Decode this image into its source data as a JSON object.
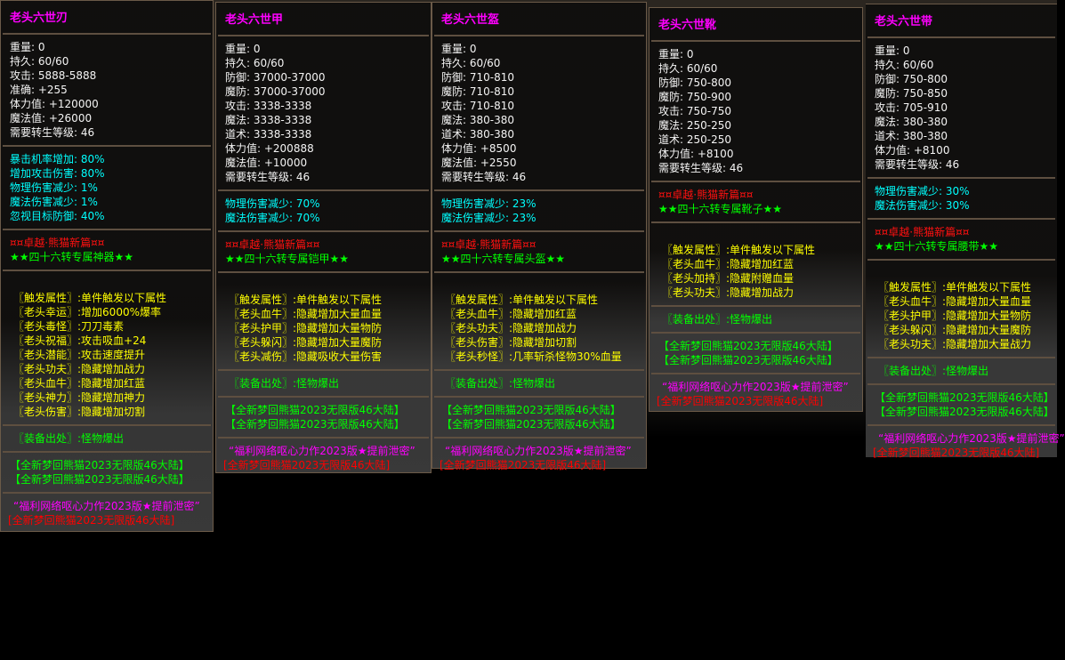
{
  "colors": {
    "title": "#ff00ff",
    "stat": "#ffffff",
    "bonus": "#00ffff",
    "series": "#ff0000",
    "exclusive": "#00ff00",
    "trigger": "#ffff00",
    "source": "#00ff00",
    "slogan": "#ff00ff",
    "footer": "#ff0000"
  },
  "panels": [
    {
      "title": "老头六世刃",
      "stats": [
        "重量: 0",
        "持久: 60/60",
        "攻击: 5888-5888",
        "准确: +255",
        "体力值: +120000",
        "魔法值: +26000",
        "需要转生等级: 46"
      ],
      "bonuses": [
        "暴击机率增加: 80%",
        "增加攻击伤害: 80%",
        "物理伤害减少: 1%",
        "魔法伤害减少: 1%",
        "忽视目标防御: 40%"
      ],
      "series": "¤¤卓越·熊猫新篇¤¤",
      "exclusive": "★★四十六转专属神器★★",
      "triggers": [
        "〖触发属性〗:单件触发以下属性",
        "〖老头幸运〗:增加6000%爆率",
        "〖老头毒怪〗:刀刀毒素",
        "〖老头祝福〗:攻击吸血+24",
        "〖老头潜能〗:攻击速度提升",
        "〖老头功夫〗:隐藏增加战力",
        "〖老头血牛〗:隐藏增加红蓝",
        "〖老头神力〗:隐藏增加神力",
        "〖老头伤害〗:隐藏增加切割"
      ],
      "source": "〖装备出处〗:怪物爆出",
      "promo": [
        "【全新梦回熊猫2023无限版46大陆】",
        "【全新梦回熊猫2023无限版46大陆】"
      ],
      "slogan": "“福利网络呕心力作2023版★提前泄密”",
      "footer": "[全新梦回熊猫2023无限版46大陆]"
    },
    {
      "title": "老头六世甲",
      "stats": [
        "重量: 0",
        "持久: 60/60",
        "防御: 37000-37000",
        "魔防: 37000-37000",
        "攻击: 3338-3338",
        "魔法: 3338-3338",
        "道术: 3338-3338",
        "体力值: +200888",
        "魔法值: +10000",
        "需要转生等级: 46"
      ],
      "bonuses": [
        "物理伤害减少: 70%",
        "魔法伤害减少: 70%"
      ],
      "series": "¤¤卓越·熊猫新篇¤¤",
      "exclusive": "★★四十六转专属铠甲★★",
      "triggers": [
        "〖触发属性〗:单件触发以下属性",
        "〖老头血牛〗:隐藏增加大量血量",
        "〖老头护甲〗:隐藏增加大量物防",
        "〖老头躲闪〗:隐藏增加大量魔防",
        "〖老头减伤〗:隐藏吸收大量伤害"
      ],
      "source": "〖装备出处〗:怪物爆出",
      "promo": [
        "【全新梦回熊猫2023无限版46大陆】",
        "【全新梦回熊猫2023无限版46大陆】"
      ],
      "slogan": "“福利网络呕心力作2023版★提前泄密”",
      "footer": "[全新梦回熊猫2023无限版46大陆]"
    },
    {
      "title": "老头六世盔",
      "stats": [
        "重量: 0",
        "持久: 60/60",
        "防御: 710-810",
        "魔防: 710-810",
        "攻击: 710-810",
        "魔法: 380-380",
        "道术: 380-380",
        "体力值: +8500",
        "魔法值: +2550",
        "需要转生等级: 46"
      ],
      "bonuses": [
        "物理伤害减少: 23%",
        "魔法伤害减少: 23%"
      ],
      "series": "¤¤卓越·熊猫新篇¤¤",
      "exclusive": "★★四十六转专属头盔★★",
      "triggers": [
        "〖触发属性〗:单件触发以下属性",
        "〖老头血牛〗:隐藏增加红蓝",
        "〖老头功夫〗:隐藏增加战力",
        "〖老头伤害〗:隐藏增加切割",
        "〖老头秒怪〗:几率斩杀怪物30%血量"
      ],
      "source": "〖装备出处〗:怪物爆出",
      "promo": [
        "【全新梦回熊猫2023无限版46大陆】",
        "【全新梦回熊猫2023无限版46大陆】"
      ],
      "slogan": "“福利网络呕心力作2023版★提前泄密”",
      "footer": "[全新梦回熊猫2023无限版46大陆]"
    },
    {
      "title": "老头六世靴",
      "stats": [
        "重量: 0",
        "持久: 60/60",
        "防御: 750-800",
        "魔防: 750-900",
        "攻击: 750-750",
        "魔法: 250-250",
        "道术: 250-250",
        "体力值: +8100",
        "需要转生等级: 46"
      ],
      "bonuses": [],
      "series": "¤¤卓越·熊猫新篇¤¤",
      "exclusive": "★★四十六转专属靴子★★",
      "triggers": [
        "〖触发属性〗:单件触发以下属性",
        "〖老头血牛〗:隐藏增加红蓝",
        "〖老头加持〗:隐藏附赠血量",
        "〖老头功夫〗:隐藏增加战力"
      ],
      "source": "〖装备出处〗:怪物爆出",
      "promo": [
        "【全新梦回熊猫2023无限版46大陆】",
        "【全新梦回熊猫2023无限版46大陆】"
      ],
      "slogan": "“福利网络呕心力作2023版★提前泄密”",
      "footer": "[全新梦回熊猫2023无限版46大陆]"
    },
    {
      "title": "老头六世带",
      "stats": [
        "重量: 0",
        "持久: 60/60",
        "防御: 750-800",
        "魔防: 750-850",
        "攻击: 705-910",
        "魔法: 380-380",
        "道术: 380-380",
        "体力值: +8100",
        "需要转生等级: 46"
      ],
      "bonuses": [
        "物理伤害减少: 30%",
        "魔法伤害减少: 30%"
      ],
      "series": "¤¤卓越·熊猫新篇¤¤",
      "exclusive": "★★四十六转专属腰带★★",
      "triggers": [
        "〖触发属性〗:单件触发以下属性",
        "〖老头血牛〗:隐藏增加大量血量",
        "〖老头护甲〗:隐藏增加大量物防",
        "〖老头躲闪〗:隐藏增加大量魔防",
        "〖老头功夫〗:隐藏增加大量战力"
      ],
      "source": "〖装备出处〗:怪物爆出",
      "promo": [
        "【全新梦回熊猫2023无限版46大陆】",
        "【全新梦回熊猫2023无限版46大陆】"
      ],
      "slogan": "“福利网络呕心力作2023版★提前泄密”",
      "footer": "[全新梦回熊猫2023无限版46大陆]"
    }
  ]
}
